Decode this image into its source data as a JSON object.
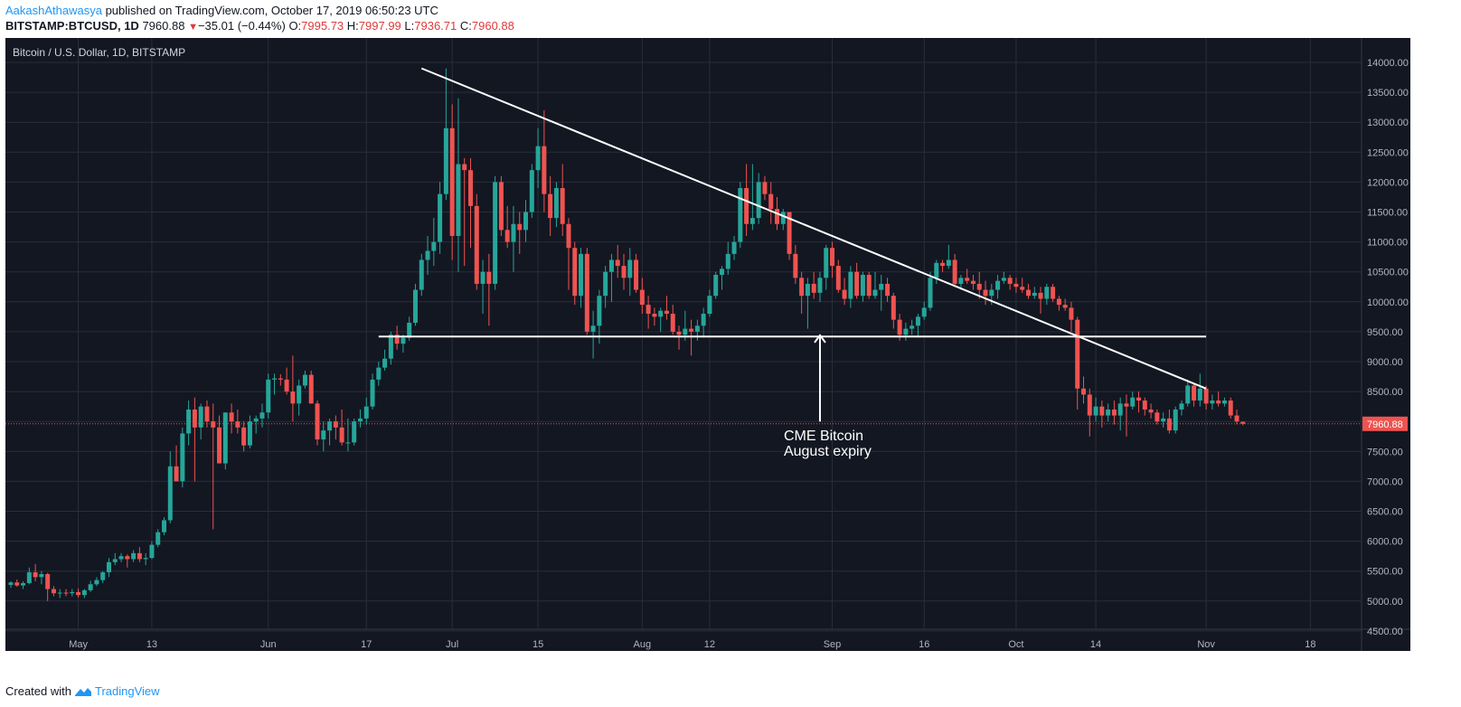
{
  "header": {
    "author": "AakashAthawasya",
    "published": " published on TradingView.com, October 17, 2019 06:50:23 UTC",
    "symbol": "BITSTAMP:BTCUSD, 1D",
    "last": "7960.88",
    "change": "−35.01 (−0.44%)",
    "open_label": "O:",
    "open": "7995.73",
    "high_label": "H:",
    "high": "7997.99",
    "low_label": "L:",
    "low": "7936.71",
    "close_label": "C:",
    "close": "7960.88"
  },
  "colors": {
    "background": "#131722",
    "up": "#26a69a",
    "down": "#ef5350",
    "grid": "#2a2e39",
    "text": "#b2b5be",
    "annotation": "#ffffff",
    "price_label_bg": "#ef5350"
  },
  "chart_data": {
    "type": "candlestick",
    "title": "Bitcoin / U.S. Dollar, 1D, BITSTAMP",
    "interval": "1D",
    "x_ticks": [
      "May",
      "13",
      "Jun",
      "17",
      "Jul",
      "15",
      "Aug",
      "12",
      "Sep",
      "16",
      "Oct",
      "14",
      "Nov",
      "18"
    ],
    "x_tick_dates": [
      "2019-05-01",
      "2019-05-13",
      "2019-06-01",
      "2019-06-17",
      "2019-07-01",
      "2019-07-15",
      "2019-08-01",
      "2019-08-12",
      "2019-09-01",
      "2019-09-16",
      "2019-10-01",
      "2019-10-14",
      "2019-11-01",
      "2019-11-18"
    ],
    "y_ticks": [
      "14000.00",
      "13500.00",
      "13000.00",
      "12500.00",
      "12000.00",
      "11500.00",
      "11000.00",
      "10500.00",
      "10000.00",
      "9500.00",
      "9000.00",
      "8500.00",
      "8000.00",
      "7500.00",
      "7000.00",
      "6500.00",
      "6000.00",
      "5500.00",
      "5000.00",
      "4500.00"
    ],
    "ylim": [
      4500,
      14000
    ],
    "last_price": "7960.88",
    "first_date": "2019-04-20",
    "candles": [
      [
        5270,
        5330,
        5220,
        5310
      ],
      [
        5310,
        5360,
        5240,
        5260
      ],
      [
        5260,
        5330,
        5200,
        5300
      ],
      [
        5300,
        5560,
        5280,
        5480
      ],
      [
        5480,
        5620,
        5330,
        5400
      ],
      [
        5400,
        5500,
        5280,
        5450
      ],
      [
        5450,
        5470,
        5000,
        5200
      ],
      [
        5200,
        5250,
        5080,
        5130
      ],
      [
        5130,
        5200,
        5050,
        5140
      ],
      [
        5140,
        5200,
        5080,
        5130
      ],
      [
        5130,
        5200,
        5080,
        5150
      ],
      [
        5150,
        5210,
        5060,
        5100
      ],
      [
        5100,
        5200,
        5050,
        5180
      ],
      [
        5180,
        5340,
        5150,
        5280
      ],
      [
        5280,
        5400,
        5250,
        5350
      ],
      [
        5350,
        5500,
        5300,
        5480
      ],
      [
        5480,
        5720,
        5400,
        5650
      ],
      [
        5650,
        5800,
        5600,
        5700
      ],
      [
        5700,
        5800,
        5650,
        5750
      ],
      [
        5750,
        5780,
        5560,
        5700
      ],
      [
        5700,
        5850,
        5650,
        5800
      ],
      [
        5800,
        5900,
        5650,
        5700
      ],
      [
        5700,
        5800,
        5600,
        5720
      ],
      [
        5720,
        6000,
        5700,
        5940
      ],
      [
        5940,
        6200,
        5900,
        6150
      ],
      [
        6150,
        6400,
        6100,
        6350
      ],
      [
        6350,
        7500,
        6300,
        7250
      ],
      [
        7250,
        7600,
        7000,
        7000
      ],
      [
        7000,
        7900,
        6900,
        7800
      ],
      [
        7800,
        8350,
        7600,
        8200
      ],
      [
        8200,
        8400,
        7000,
        7900
      ],
      [
        7900,
        8300,
        7700,
        8250
      ],
      [
        8250,
        8350,
        7900,
        8000
      ],
      [
        8000,
        8300,
        6200,
        7900
      ],
      [
        7900,
        8100,
        7300,
        7300
      ],
      [
        7300,
        8150,
        7200,
        8150
      ],
      [
        8150,
        8300,
        7800,
        8000
      ],
      [
        8000,
        8200,
        7800,
        7900
      ],
      [
        7900,
        8000,
        7500,
        7600
      ],
      [
        7600,
        8100,
        7550,
        8000
      ],
      [
        8000,
        8100,
        7800,
        8050
      ],
      [
        8050,
        8300,
        7900,
        8150
      ],
      [
        8150,
        8800,
        8050,
        8700
      ],
      [
        8700,
        8800,
        8450,
        8720
      ],
      [
        8720,
        8790,
        8600,
        8700
      ],
      [
        8700,
        8900,
        8450,
        8500
      ],
      [
        8500,
        9100,
        8000,
        8300
      ],
      [
        8300,
        8700,
        8100,
        8600
      ],
      [
        8600,
        8850,
        8550,
        8780
      ],
      [
        8780,
        8850,
        8300,
        8300
      ],
      [
        8300,
        8350,
        7600,
        7700
      ],
      [
        7700,
        8000,
        7500,
        7850
      ],
      [
        7850,
        8050,
        7600,
        8000
      ],
      [
        8000,
        8100,
        7700,
        7900
      ],
      [
        7900,
        8200,
        7600,
        7650
      ],
      [
        7650,
        8050,
        7500,
        7650
      ],
      [
        7650,
        8050,
        7600,
        8000
      ],
      [
        8000,
        8200,
        7900,
        8050
      ],
      [
        8050,
        8400,
        7950,
        8250
      ],
      [
        8250,
        8800,
        8200,
        8700
      ],
      [
        8700,
        9000,
        8600,
        8900
      ],
      [
        8900,
        9200,
        8850,
        9050
      ],
      [
        9050,
        9500,
        8950,
        9450
      ],
      [
        9450,
        9600,
        9200,
        9300
      ],
      [
        9300,
        9450,
        9150,
        9400
      ],
      [
        9400,
        9750,
        9350,
        9650
      ],
      [
        9650,
        10300,
        9600,
        10200
      ],
      [
        10200,
        10800,
        10100,
        10700
      ],
      [
        10700,
        11100,
        10450,
        10850
      ],
      [
        10850,
        11400,
        10600,
        11000
      ],
      [
        11000,
        12000,
        10800,
        11800
      ],
      [
        11800,
        13900,
        11700,
        12900
      ],
      [
        12900,
        13300,
        10700,
        11100
      ],
      [
        11100,
        13400,
        10500,
        12300
      ],
      [
        12300,
        12400,
        10600,
        12200
      ],
      [
        12200,
        12400,
        10900,
        11600
      ],
      [
        11600,
        11800,
        10200,
        10300
      ],
      [
        10300,
        10700,
        9800,
        10500
      ],
      [
        10500,
        10800,
        9600,
        10300
      ],
      [
        10300,
        12100,
        10200,
        12000
      ],
      [
        12000,
        12100,
        11100,
        11200
      ],
      [
        11200,
        11600,
        10900,
        11000
      ],
      [
        11000,
        11600,
        10500,
        11300
      ],
      [
        11300,
        11500,
        10800,
        11200
      ],
      [
        11200,
        11700,
        11000,
        11500
      ],
      [
        11500,
        12300,
        11400,
        12200
      ],
      [
        12200,
        12900,
        11900,
        12600
      ],
      [
        12600,
        13200,
        11500,
        11800
      ],
      [
        11800,
        12100,
        11100,
        11400
      ],
      [
        11400,
        12000,
        11250,
        11900
      ],
      [
        11900,
        12300,
        11100,
        11300
      ],
      [
        11300,
        11400,
        10200,
        10900
      ],
      [
        10900,
        11000,
        9950,
        10100
      ],
      [
        10100,
        10900,
        9900,
        10800
      ],
      [
        10800,
        10900,
        9450,
        9500
      ],
      [
        9500,
        9850,
        9050,
        9600
      ],
      [
        9600,
        10200,
        9300,
        10100
      ],
      [
        10100,
        10600,
        9900,
        10500
      ],
      [
        10500,
        10800,
        10000,
        10700
      ],
      [
        10700,
        10950,
        10400,
        10600
      ],
      [
        10600,
        10800,
        10200,
        10400
      ],
      [
        10400,
        10900,
        10100,
        10700
      ],
      [
        10700,
        10800,
        10150,
        10200
      ],
      [
        10200,
        10400,
        9800,
        9950
      ],
      [
        9950,
        10100,
        9550,
        9800
      ],
      [
        9800,
        9900,
        9600,
        9750
      ],
      [
        9750,
        9900,
        9500,
        9850
      ],
      [
        9850,
        10100,
        9700,
        9800
      ],
      [
        9800,
        9950,
        9450,
        9500
      ],
      [
        9500,
        9600,
        9200,
        9450
      ],
      [
        9450,
        9850,
        9350,
        9550
      ],
      [
        9550,
        9700,
        9100,
        9500
      ],
      [
        9500,
        9700,
        9350,
        9600
      ],
      [
        9600,
        9900,
        9400,
        9800
      ],
      [
        9800,
        10200,
        9750,
        10100
      ],
      [
        10100,
        10500,
        10050,
        10450
      ],
      [
        10450,
        10600,
        10200,
        10550
      ],
      [
        10550,
        11000,
        10450,
        10800
      ],
      [
        10800,
        11100,
        10700,
        11000
      ],
      [
        11000,
        12000,
        10900,
        11900
      ],
      [
        11900,
        12300,
        11100,
        11300
      ],
      [
        11300,
        12300,
        11200,
        11400
      ],
      [
        11400,
        12150,
        11300,
        12000
      ],
      [
        12000,
        12100,
        11700,
        11800
      ],
      [
        11800,
        12000,
        11300,
        11550
      ],
      [
        11550,
        11750,
        11200,
        11300
      ],
      [
        11300,
        11550,
        11200,
        11500
      ],
      [
        11500,
        11500,
        10700,
        10800
      ],
      [
        10800,
        10950,
        10300,
        10400
      ],
      [
        10400,
        10500,
        9800,
        10100
      ],
      [
        10100,
        10400,
        9550,
        10300
      ],
      [
        10300,
        10500,
        10050,
        10150
      ],
      [
        10150,
        10500,
        10000,
        10400
      ],
      [
        10400,
        10950,
        10200,
        10900
      ],
      [
        10900,
        11000,
        10400,
        10600
      ],
      [
        10600,
        10700,
        10150,
        10200
      ],
      [
        10200,
        10400,
        9950,
        10050
      ],
      [
        10050,
        10600,
        9900,
        10500
      ],
      [
        10500,
        10650,
        10050,
        10100
      ],
      [
        10100,
        10500,
        10000,
        10450
      ],
      [
        10450,
        10500,
        10050,
        10100
      ],
      [
        10100,
        10500,
        10050,
        10200
      ],
      [
        10200,
        10450,
        9850,
        10300
      ],
      [
        10300,
        10400,
        10000,
        10100
      ],
      [
        10100,
        10150,
        9550,
        9700
      ],
      [
        9700,
        9800,
        9350,
        9450
      ],
      [
        9450,
        9650,
        9350,
        9550
      ],
      [
        9550,
        9700,
        9450,
        9600
      ],
      [
        9600,
        9800,
        9400,
        9750
      ],
      [
        9750,
        10000,
        9700,
        9900
      ],
      [
        9900,
        10500,
        9850,
        10400
      ],
      [
        10400,
        10700,
        10300,
        10650
      ],
      [
        10650,
        10700,
        10500,
        10600
      ],
      [
        10600,
        10950,
        10550,
        10700
      ],
      [
        10700,
        10800,
        10250,
        10300
      ],
      [
        10300,
        10450,
        10200,
        10400
      ],
      [
        10400,
        10550,
        10300,
        10350
      ],
      [
        10350,
        10450,
        10200,
        10300
      ],
      [
        10300,
        10500,
        10050,
        10200
      ],
      [
        10200,
        10350,
        9950,
        10100
      ],
      [
        10100,
        10300,
        9950,
        10200
      ],
      [
        10200,
        10450,
        10050,
        10350
      ],
      [
        10350,
        10500,
        10300,
        10400
      ],
      [
        10400,
        10450,
        10200,
        10300
      ],
      [
        10300,
        10400,
        10150,
        10250
      ],
      [
        10250,
        10400,
        10150,
        10200
      ],
      [
        10200,
        10300,
        10050,
        10100
      ],
      [
        10100,
        10250,
        10050,
        10150
      ],
      [
        10150,
        10250,
        9800,
        10050
      ],
      [
        10050,
        10300,
        9950,
        10250
      ],
      [
        10250,
        10300,
        10000,
        10050
      ],
      [
        10050,
        10100,
        9850,
        9950
      ],
      [
        9950,
        10050,
        9850,
        9900
      ],
      [
        9900,
        10000,
        9500,
        9700
      ],
      [
        9700,
        9750,
        8200,
        8550
      ],
      [
        8550,
        8750,
        8300,
        8450
      ],
      [
        8450,
        8550,
        7750,
        8100
      ],
      [
        8100,
        8400,
        8000,
        8250
      ],
      [
        8250,
        8350,
        7900,
        8100
      ],
      [
        8100,
        8300,
        8000,
        8200
      ],
      [
        8200,
        8350,
        7950,
        8100
      ],
      [
        8100,
        8400,
        7850,
        8300
      ],
      [
        8300,
        8450,
        7750,
        8250
      ],
      [
        8250,
        8500,
        8200,
        8400
      ],
      [
        8400,
        8500,
        8150,
        8350
      ],
      [
        8350,
        8400,
        8100,
        8200
      ],
      [
        8200,
        8300,
        8050,
        8150
      ],
      [
        8150,
        8200,
        7950,
        8000
      ],
      [
        8000,
        8150,
        7900,
        8050
      ],
      [
        8050,
        8200,
        7800,
        7850
      ],
      [
        7850,
        8250,
        7800,
        8200
      ],
      [
        8200,
        8350,
        8100,
        8300
      ],
      [
        8300,
        8700,
        8250,
        8600
      ],
      [
        8600,
        8650,
        8250,
        8350
      ],
      [
        8350,
        8800,
        8250,
        8550
      ],
      [
        8550,
        8600,
        8200,
        8300
      ],
      [
        8300,
        8450,
        8200,
        8350
      ],
      [
        8350,
        8500,
        8250,
        8300
      ],
      [
        8300,
        8400,
        8250,
        8350
      ],
      [
        8350,
        8400,
        8050,
        8100
      ],
      [
        8100,
        8200,
        7950,
        8000
      ],
      [
        7995.73,
        7997.99,
        7936.71,
        7960.88
      ]
    ],
    "annotations": {
      "trendline_start": {
        "date": "2019-06-26",
        "price": 13900
      },
      "trendline_end": {
        "date": "2019-11-01",
        "price": 8550
      },
      "support_start": {
        "date": "2019-06-19",
        "price": 9420
      },
      "support_end": {
        "date": "2019-11-01",
        "price": 9420
      },
      "arrow_date": "2019-08-30",
      "arrow_from_price": 8000,
      "arrow_to_price": 9440,
      "label_line1": "CME Bitcoin",
      "label_line2": "August expiry"
    }
  },
  "footer": {
    "created_with": "Created with",
    "brand": "TradingView"
  }
}
